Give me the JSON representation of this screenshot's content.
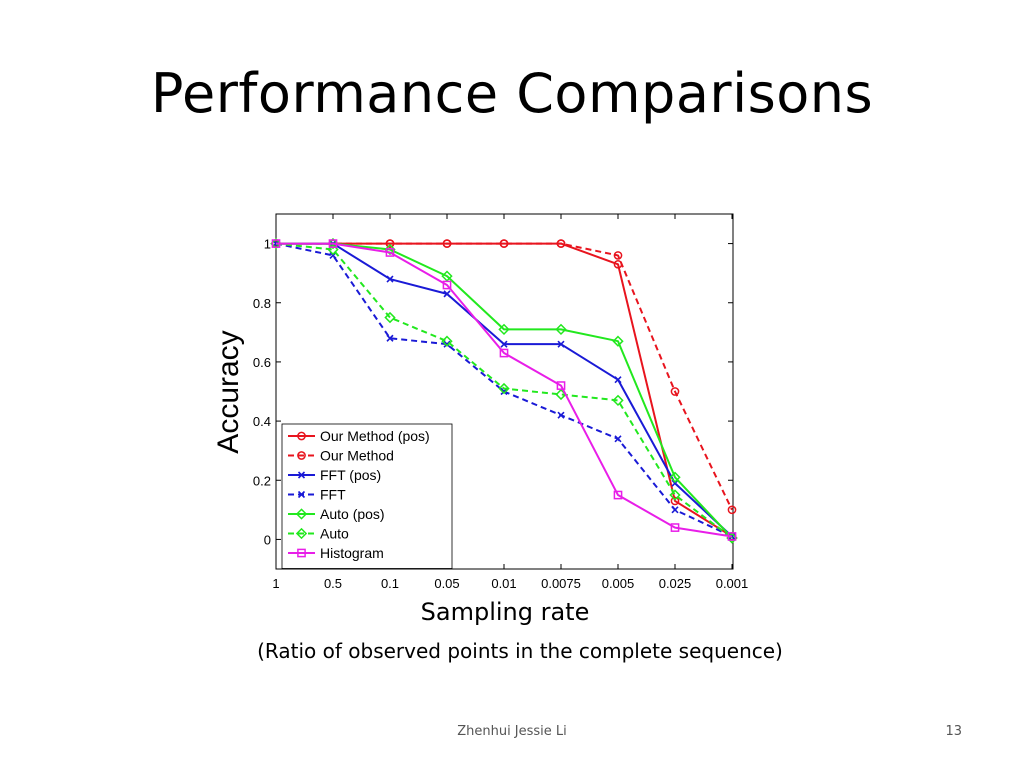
{
  "slide": {
    "title": "Performance Comparisons",
    "caption": "(Ratio of observed points in the complete sequence)",
    "author": "Zhenhui Jessie Li",
    "page_number": "13"
  },
  "chart_data": {
    "type": "line",
    "title": "",
    "xlabel": "Sampling rate",
    "ylabel": "Accuracy",
    "categories": [
      "1",
      "0.5",
      "0.1",
      "0.05",
      "0.01",
      "0.0075",
      "0.005",
      "0.025",
      "0.001"
    ],
    "ylim": [
      -0.1,
      1.1
    ],
    "yticks": [
      0,
      0.2,
      0.4,
      0.6,
      0.8,
      1
    ],
    "ytick_labels": [
      "0",
      "0.2",
      "0.4",
      "0.6",
      "0.8",
      "1"
    ],
    "grid": false,
    "legend_position": "bottom-left",
    "series": [
      {
        "name": "Our Method (pos)",
        "color": "#e8141e",
        "dashed": false,
        "marker": "circle",
        "values": [
          1,
          1,
          1,
          1,
          1,
          1,
          0.93,
          0.13,
          0.01
        ]
      },
      {
        "name": "Our Method",
        "color": "#e8141e",
        "dashed": true,
        "marker": "circle",
        "values": [
          1,
          1,
          1,
          1,
          1,
          1,
          0.96,
          0.5,
          0.1
        ]
      },
      {
        "name": "FFT (pos)",
        "color": "#1a1ad6",
        "dashed": false,
        "marker": "x",
        "values": [
          1,
          1,
          0.88,
          0.83,
          0.66,
          0.66,
          0.54,
          0.19,
          0.01
        ]
      },
      {
        "name": "FFT",
        "color": "#1a1ad6",
        "dashed": true,
        "marker": "x",
        "values": [
          1,
          0.96,
          0.68,
          0.66,
          0.5,
          0.42,
          0.34,
          0.1,
          0.01
        ]
      },
      {
        "name": "Auto (pos)",
        "color": "#22e81e",
        "dashed": false,
        "marker": "diamond",
        "values": [
          1,
          1,
          0.98,
          0.89,
          0.71,
          0.71,
          0.67,
          0.21,
          0.005
        ]
      },
      {
        "name": "Auto",
        "color": "#22e81e",
        "dashed": true,
        "marker": "diamond",
        "values": [
          1,
          0.98,
          0.75,
          0.67,
          0.51,
          0.49,
          0.47,
          0.15,
          0.005
        ]
      },
      {
        "name": "Histogram",
        "color": "#e81ee8",
        "dashed": false,
        "marker": "square",
        "values": [
          1,
          1,
          0.97,
          0.86,
          0.63,
          0.52,
          0.15,
          0.04,
          0.01
        ]
      }
    ]
  }
}
